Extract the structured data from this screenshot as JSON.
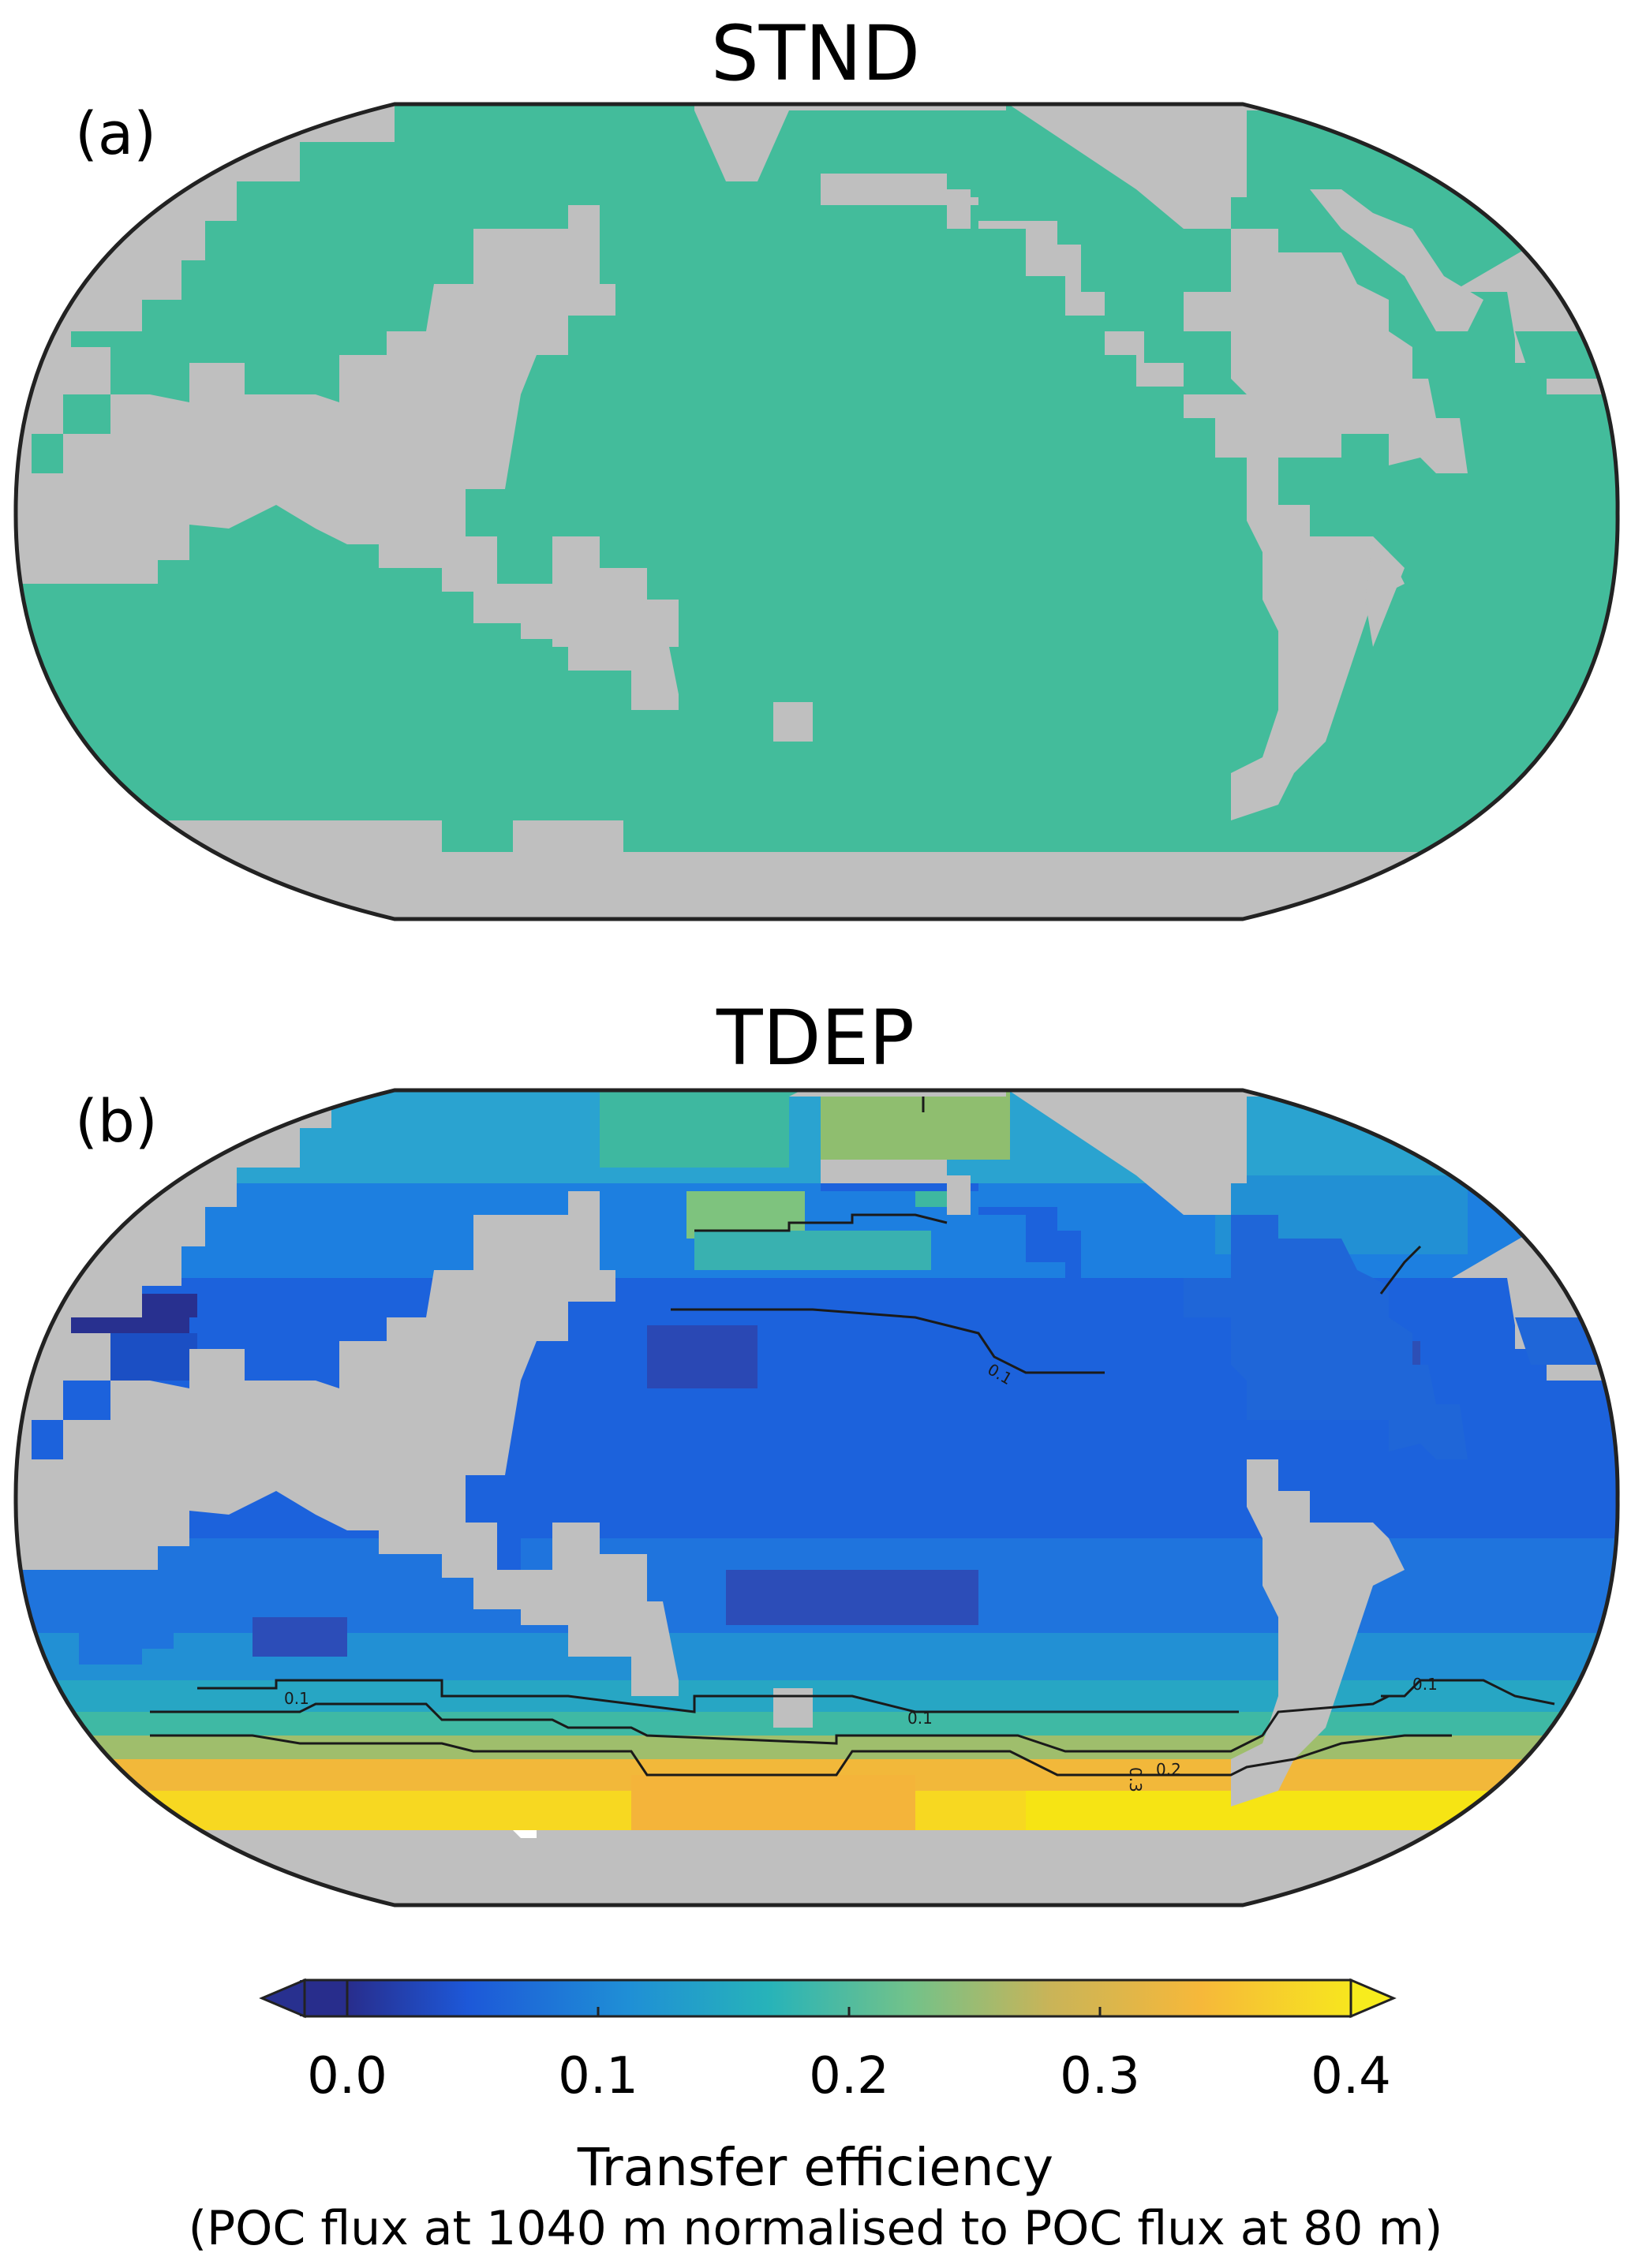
{
  "panels": [
    {
      "title": "STND",
      "label": "(a)",
      "field_value": 0.2,
      "field_color": "#43bc9b"
    },
    {
      "title": "TDEP",
      "label": "(b)"
    }
  ],
  "colors": {
    "land": "#bfbfbf",
    "outline": "#222222"
  },
  "contours": {
    "labels": [
      "0.1",
      "0.1",
      "0.1",
      "0.1",
      "0.2",
      "0.3"
    ]
  },
  "colorbar": {
    "ticks": [
      "0.0",
      "0.1",
      "0.2",
      "0.3",
      "0.4"
    ],
    "range": [
      0.0,
      0.4
    ],
    "extend": "both",
    "label": "Transfer efficiency",
    "sublabel": "(POC flux at 1040 m normalised to POC flux at 80 m)",
    "stops": [
      "#282d8c",
      "#1d58d8",
      "#1f8fd6",
      "#27b3b9",
      "#72c28a",
      "#c9b458",
      "#f6b83a",
      "#f7e61e"
    ]
  }
}
